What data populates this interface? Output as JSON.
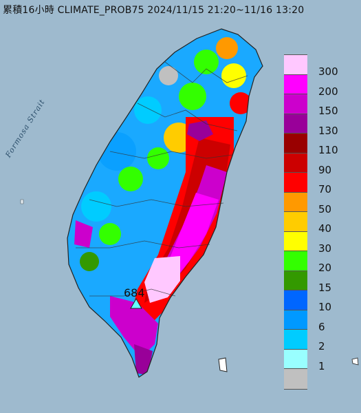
{
  "title": "累積16小時 CLIMATE_PROB75 2024/11/15 21:20~11/16 13:20",
  "strait_label": "Formosa Strait",
  "max_value": "684",
  "legend": [
    {
      "label": "300",
      "color": "#ffc8ff"
    },
    {
      "label": "200",
      "color": "#ff00ff"
    },
    {
      "label": "150",
      "color": "#cc00cc"
    },
    {
      "label": "130",
      "color": "#990099"
    },
    {
      "label": "110",
      "color": "#990000"
    },
    {
      "label": "90",
      "color": "#cc0000"
    },
    {
      "label": "70",
      "color": "#ff0000"
    },
    {
      "label": "50",
      "color": "#ff9900"
    },
    {
      "label": "40",
      "color": "#ffcc00"
    },
    {
      "label": "30",
      "color": "#ffff00"
    },
    {
      "label": "20",
      "color": "#33ff00"
    },
    {
      "label": "15",
      "color": "#339900"
    },
    {
      "label": "10",
      "color": "#0066ff"
    },
    {
      "label": "6",
      "color": "#0099ff"
    },
    {
      "label": "2",
      "color": "#00ccff"
    },
    {
      "label": "1",
      "color": "#99ffff"
    },
    {
      "label": "",
      "color": "#c0c0c0"
    }
  ]
}
